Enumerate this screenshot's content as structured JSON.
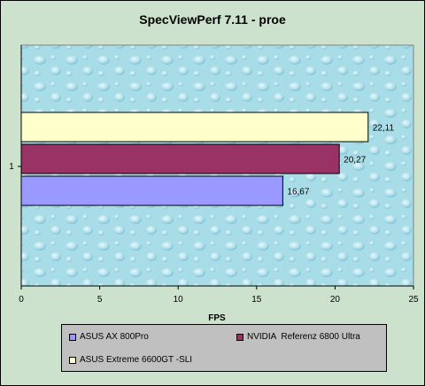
{
  "chart_data": {
    "type": "bar",
    "orientation": "horizontal",
    "title": "SpecViewPerf 7.11 - proe",
    "xlabel": "FPS",
    "ylabel": "",
    "categories": [
      "1"
    ],
    "xlim": [
      0,
      25
    ],
    "xticks": [
      "0",
      "5",
      "10",
      "15",
      "20",
      "25"
    ],
    "grid": false,
    "legend_position": "bottom",
    "series": [
      {
        "name": "ASUS AX 800Pro",
        "values": [
          16.67
        ],
        "label": "16,67",
        "color": "#9999ff"
      },
      {
        "name": "NVIDIA  Referenz 6800 Ultra",
        "values": [
          20.27
        ],
        "label": "20,27",
        "color": "#993366"
      },
      {
        "name": "ASUS Extreme 6600GT -SLI",
        "values": [
          22.11
        ],
        "label": "22,11",
        "color": "#ffffcc"
      }
    ]
  },
  "colors": {
    "frame_background": "#cce2cd",
    "plot_background": "#a8dde8",
    "legend_background": "#c0c0c0"
  }
}
